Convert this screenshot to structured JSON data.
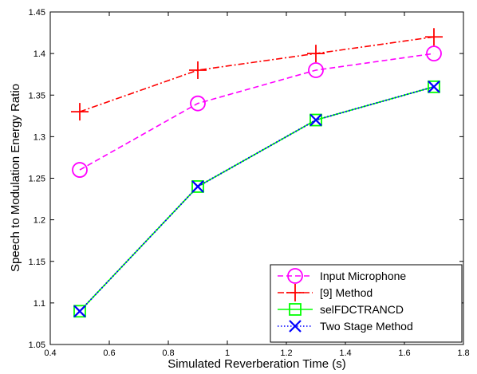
{
  "chart_data": {
    "type": "line",
    "title": "",
    "xlabel": "Simulated Reverberation Time (s)",
    "ylabel": "Speech to Modulation Energy Ratio",
    "xlim": [
      0.4,
      1.8
    ],
    "ylim": [
      1.05,
      1.45
    ],
    "x_ticks": [
      0.4,
      0.6,
      0.8,
      1.0,
      1.2,
      1.4,
      1.6,
      1.8
    ],
    "x_tick_labels": [
      "0.4",
      "0.6",
      "0.8",
      "1",
      "1.2",
      "1.4",
      "1.6",
      "1.8"
    ],
    "y_ticks": [
      1.05,
      1.1,
      1.15,
      1.2,
      1.25,
      1.3,
      1.35,
      1.4,
      1.45
    ],
    "y_tick_labels": [
      "1.05",
      "1.1",
      "1.15",
      "1.2",
      "1.25",
      "1.3",
      "1.35",
      "1.4",
      "1.45"
    ],
    "grid": false,
    "legend_position": "bottom-right",
    "x": [
      0.5,
      0.9,
      1.3,
      1.7
    ],
    "series": [
      {
        "name": "Input Microphone",
        "values": [
          1.26,
          1.34,
          1.38,
          1.4
        ],
        "color": "#ff00ff",
        "dash": "dashed",
        "marker": "circle"
      },
      {
        "name": "[9] Method",
        "values": [
          1.33,
          1.38,
          1.4,
          1.42
        ],
        "color": "#ff0000",
        "dash": "dashdot",
        "marker": "plus"
      },
      {
        "name": "selFDCTRANCD",
        "values": [
          1.09,
          1.24,
          1.32,
          1.36
        ],
        "color": "#00ff00",
        "dash": "solid",
        "marker": "square"
      },
      {
        "name": "Two Stage Method",
        "values": [
          1.09,
          1.24,
          1.32,
          1.36
        ],
        "color": "#0000ff",
        "dash": "dotted",
        "marker": "x"
      }
    ]
  }
}
